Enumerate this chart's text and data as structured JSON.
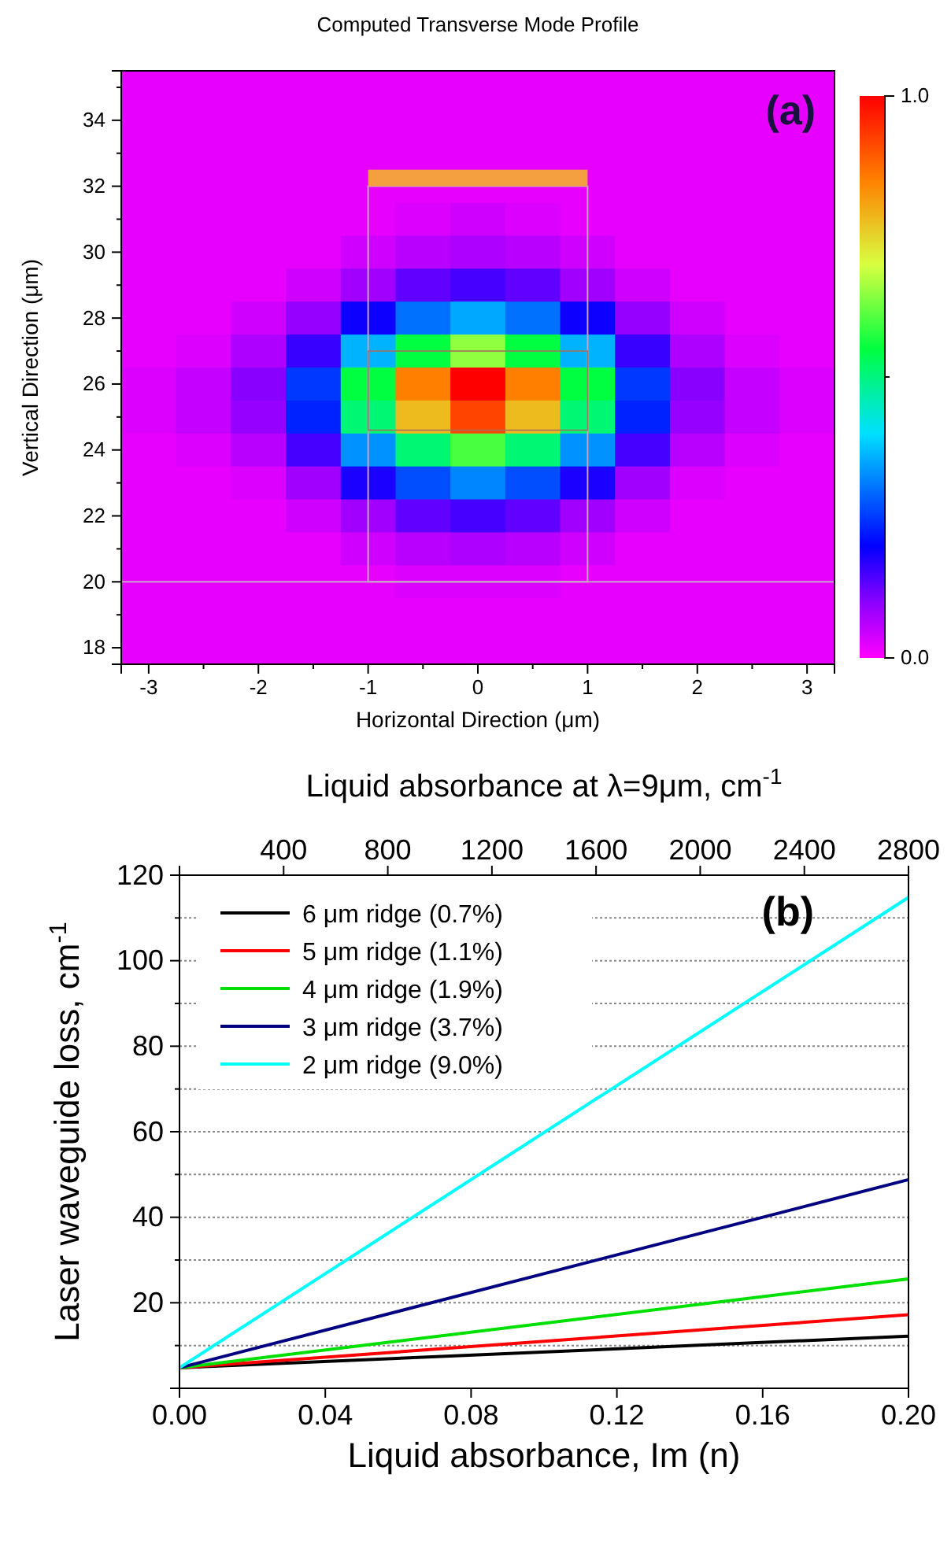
{
  "chart_data": [
    {
      "type": "heatmap",
      "title": "Computed Transverse Mode Profile",
      "xlabel": "Horizontal Direction (μm)",
      "ylabel": "Vertical Direction (μm)",
      "annotations": [
        "(a)"
      ],
      "categories": [
        "-3",
        null,
        "-2",
        null,
        "-1",
        null,
        "0",
        null,
        "1",
        null,
        "2",
        null,
        "3"
      ],
      "y_categories": [
        null,
        "34",
        null,
        "32",
        null,
        "30",
        null,
        "28",
        null,
        "26",
        null,
        "24",
        null,
        "22",
        null,
        "20",
        null,
        "18"
      ],
      "clim": [
        0,
        1
      ],
      "cticks": [
        {
          "value": 0,
          "label": "0.0"
        },
        {
          "value": 0.5,
          "label": null
        },
        {
          "value": 1,
          "label": "1.0"
        }
      ],
      "cells": [
        [
          0.02,
          0.02,
          0.02,
          0.02,
          0.02,
          0.02,
          0.02,
          0.02,
          0.02,
          0.02,
          0.02,
          0.02,
          0.02
        ],
        [
          0.02,
          0.02,
          0.02,
          0.02,
          0.02,
          0.02,
          0.02,
          0.02,
          0.02,
          0.02,
          0.02,
          0.02,
          0.02
        ],
        [
          0.02,
          0.02,
          0.02,
          0.02,
          0.02,
          0.02,
          0.02,
          0.02,
          0.02,
          0.02,
          0.02,
          0.02,
          0.02
        ],
        [
          0.02,
          0.02,
          0.02,
          0.02,
          0.02,
          0.02,
          0.02,
          0.02,
          0.02,
          0.02,
          0.02,
          0.02,
          0.02
        ],
        [
          0.02,
          0.02,
          0.02,
          0.02,
          0.02,
          0.03,
          0.04,
          0.03,
          0.02,
          0.02,
          0.02,
          0.02,
          0.02
        ],
        [
          0.02,
          0.02,
          0.02,
          0.02,
          0.04,
          0.06,
          0.07,
          0.06,
          0.04,
          0.02,
          0.02,
          0.02,
          0.02
        ],
        [
          0.02,
          0.02,
          0.02,
          0.04,
          0.08,
          0.13,
          0.15,
          0.13,
          0.08,
          0.04,
          0.02,
          0.02,
          0.02
        ],
        [
          0.02,
          0.02,
          0.04,
          0.09,
          0.19,
          0.3,
          0.35,
          0.3,
          0.19,
          0.09,
          0.04,
          0.02,
          0.02
        ],
        [
          0.02,
          0.03,
          0.07,
          0.16,
          0.36,
          0.55,
          0.65,
          0.55,
          0.36,
          0.16,
          0.07,
          0.03,
          0.02
        ],
        [
          0.03,
          0.05,
          0.1,
          0.25,
          0.55,
          0.85,
          1.0,
          0.85,
          0.55,
          0.25,
          0.1,
          0.05,
          0.03
        ],
        [
          0.03,
          0.05,
          0.09,
          0.23,
          0.51,
          0.78,
          0.92,
          0.78,
          0.51,
          0.23,
          0.09,
          0.05,
          0.03
        ],
        [
          0.02,
          0.03,
          0.06,
          0.15,
          0.33,
          0.51,
          0.6,
          0.51,
          0.33,
          0.15,
          0.06,
          0.03,
          0.02
        ],
        [
          0.02,
          0.02,
          0.03,
          0.08,
          0.18,
          0.27,
          0.32,
          0.27,
          0.18,
          0.08,
          0.03,
          0.02,
          0.02
        ],
        [
          0.02,
          0.02,
          0.02,
          0.04,
          0.08,
          0.13,
          0.15,
          0.13,
          0.08,
          0.04,
          0.02,
          0.02,
          0.02
        ],
        [
          0.02,
          0.02,
          0.02,
          0.02,
          0.04,
          0.06,
          0.07,
          0.06,
          0.04,
          0.02,
          0.02,
          0.02,
          0.02
        ],
        [
          0.02,
          0.02,
          0.02,
          0.02,
          0.02,
          0.03,
          0.03,
          0.03,
          0.02,
          0.02,
          0.02,
          0.02,
          0.02
        ],
        [
          0.02,
          0.02,
          0.02,
          0.02,
          0.02,
          0.02,
          0.02,
          0.02,
          0.02,
          0.02,
          0.02,
          0.02,
          0.02
        ],
        [
          0.02,
          0.02,
          0.02,
          0.02,
          0.02,
          0.02,
          0.02,
          0.02,
          0.02,
          0.02,
          0.02,
          0.02,
          0.02
        ]
      ]
    },
    {
      "type": "line",
      "xlabel": "Liquid absorbance, Im (n)",
      "ylabel": "Laser waveguide loss, cm$^{-1}$",
      "x2label": "Liquid absorbance at λ=9μm, cm$^{-1}$",
      "annotations": [
        "(b)"
      ],
      "x": [
        0,
        0.2
      ],
      "xlim": [
        0,
        0.2
      ],
      "xticks": [
        {
          "value": 0,
          "label": "0.00"
        },
        0.04,
        0.08,
        0.12,
        0.16,
        {
          "value": 0.2,
          "label": "0.20"
        }
      ],
      "x2lim": [
        0,
        2800
      ],
      "x2ticks": [
        400,
        800,
        1200,
        1600,
        2000,
        2400,
        2800
      ],
      "ylim": [
        0,
        120
      ],
      "yticks": [
        {
          "value": 10,
          "label": null
        },
        20,
        {
          "value": 30,
          "label": null
        },
        40,
        {
          "value": 50,
          "label": null
        },
        60,
        {
          "value": 70,
          "label": null
        },
        80,
        {
          "value": 90,
          "label": null
        },
        100,
        {
          "value": 110,
          "label": null
        },
        120
      ],
      "grid": "y",
      "legend": "top left",
      "line_style": "solid",
      "series": [
        {
          "name": "6 μm ridge (0.7%)",
          "color": "#000000",
          "values": [
            4.8,
            12.2
          ]
        },
        {
          "name": "5 μm ridge (1.1%)",
          "color": "#ff0000",
          "values": [
            4.8,
            17.2
          ]
        },
        {
          "name": "4 μm ridge (1.9%)",
          "color": "#00e000",
          "values": [
            4.8,
            25.6
          ]
        },
        {
          "name": "3 μm ridge (3.7%)",
          "color": "#000080",
          "values": [
            4.8,
            48.8
          ]
        },
        {
          "name": "2 μm ridge (9.0%)",
          "color": "#00ffff",
          "values": [
            4.8,
            114.8
          ]
        }
      ]
    }
  ]
}
